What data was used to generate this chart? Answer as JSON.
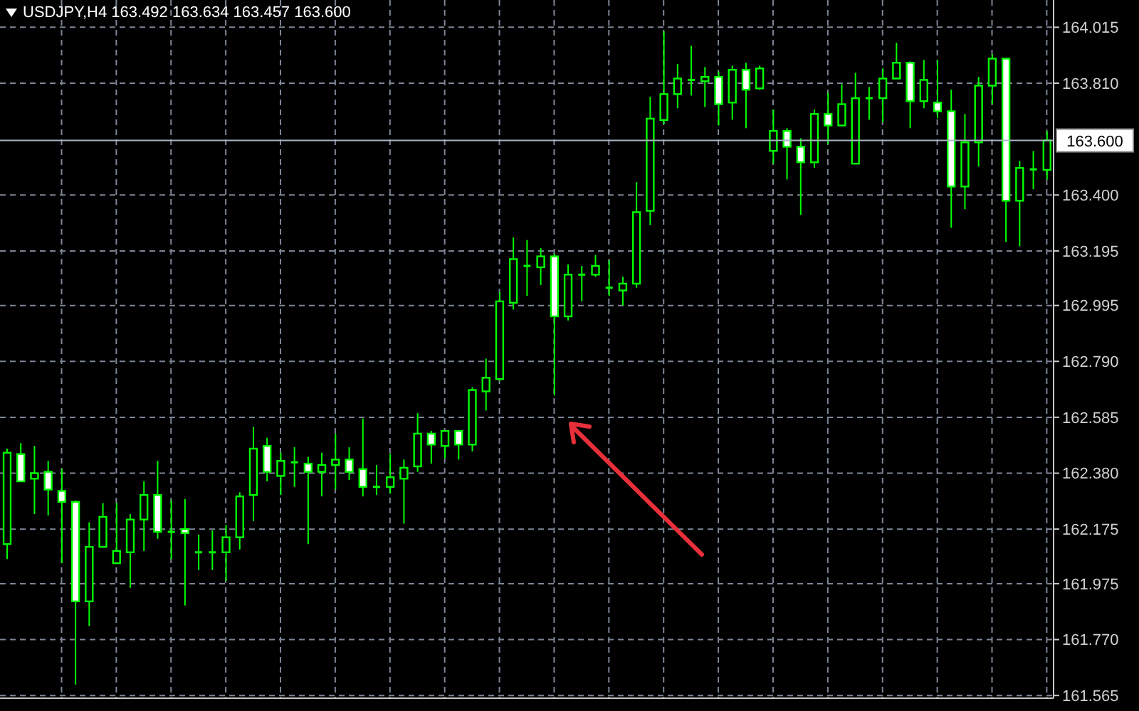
{
  "chart_data": {
    "type": "candlestick",
    "title": "USDJPY,H4 163.492 163.634 163.457 163.600",
    "categories": [
      null,
      null,
      null,
      null,
      null,
      null,
      null,
      null,
      null,
      null,
      null,
      null,
      null,
      null,
      null,
      null,
      null,
      null,
      null,
      null,
      null,
      null,
      null,
      null,
      null,
      null,
      null,
      null,
      null,
      null,
      null,
      null,
      null,
      null,
      null,
      null,
      null,
      null,
      null,
      null,
      null,
      null,
      null,
      null,
      null,
      null,
      null,
      null,
      null,
      null,
      null,
      null,
      null,
      null,
      null,
      null,
      null,
      null,
      null,
      null,
      null,
      null,
      null,
      null,
      null,
      null,
      null,
      null,
      null,
      null,
      null,
      null,
      null,
      null,
      null,
      null,
      null
    ],
    "ohlc": [
      [
        162.12,
        162.47,
        162.065,
        162.455
      ],
      [
        162.45,
        162.49,
        162.35,
        162.35
      ],
      [
        162.36,
        162.48,
        162.23,
        162.38
      ],
      [
        162.385,
        162.425,
        162.225,
        162.32
      ],
      [
        162.315,
        162.395,
        162.05,
        162.275
      ],
      [
        162.275,
        162.28,
        161.605,
        161.91
      ],
      [
        161.91,
        162.2,
        161.82,
        162.11
      ],
      [
        162.11,
        162.27,
        162.11,
        162.22
      ],
      [
        162.05,
        162.27,
        162.05,
        162.095
      ],
      [
        162.09,
        162.23,
        161.96,
        162.21
      ],
      [
        162.21,
        162.35,
        162.095,
        162.3
      ],
      [
        162.3,
        162.425,
        162.14,
        162.165
      ],
      [
        162.165,
        162.28,
        162.065,
        162.165
      ],
      [
        162.175,
        162.285,
        161.895,
        162.16
      ],
      [
        162.09,
        162.155,
        162.025,
        162.09
      ],
      [
        162.09,
        162.17,
        162.025,
        162.09
      ],
      [
        162.09,
        162.19,
        161.985,
        162.145
      ],
      [
        162.145,
        162.31,
        162.1,
        162.295
      ],
      [
        162.3,
        162.55,
        162.205,
        162.47
      ],
      [
        162.48,
        162.51,
        162.35,
        162.385
      ],
      [
        162.37,
        162.455,
        162.3,
        162.425
      ],
      [
        162.42,
        162.475,
        162.33,
        162.42
      ],
      [
        162.415,
        162.44,
        162.12,
        162.385
      ],
      [
        162.385,
        162.455,
        162.295,
        162.41
      ],
      [
        162.41,
        162.525,
        162.32,
        162.43
      ],
      [
        162.43,
        162.475,
        162.355,
        162.385
      ],
      [
        162.395,
        162.58,
        162.295,
        162.33
      ],
      [
        162.33,
        162.41,
        162.3,
        162.33
      ],
      [
        162.33,
        162.45,
        162.305,
        162.365
      ],
      [
        162.36,
        162.43,
        162.195,
        162.4
      ],
      [
        162.405,
        162.6,
        162.385,
        162.525
      ],
      [
        162.525,
        162.535,
        162.415,
        162.485
      ],
      [
        162.48,
        162.535,
        162.435,
        162.535
      ],
      [
        162.535,
        162.535,
        162.43,
        162.485
      ],
      [
        162.485,
        162.695,
        162.46,
        162.685
      ],
      [
        162.68,
        162.8,
        162.61,
        162.73
      ],
      [
        162.725,
        163.045,
        162.72,
        163.01
      ],
      [
        163.005,
        163.245,
        162.98,
        163.165
      ],
      [
        163.14,
        163.235,
        163.03,
        163.14
      ],
      [
        163.135,
        163.205,
        163.07,
        163.175
      ],
      [
        163.175,
        163.185,
        162.665,
        162.955
      ],
      [
        162.955,
        163.145,
        162.94,
        163.108
      ],
      [
        163.108,
        163.14,
        163.01,
        163.108
      ],
      [
        163.108,
        163.18,
        163.1,
        163.14
      ],
      [
        163.06,
        163.16,
        163.03,
        163.06
      ],
      [
        163.05,
        163.1,
        162.995,
        163.075
      ],
      [
        163.075,
        163.447,
        163.06,
        163.337
      ],
      [
        163.342,
        163.76,
        163.29,
        163.68
      ],
      [
        163.675,
        164.0,
        163.66,
        163.77
      ],
      [
        163.77,
        163.88,
        163.718,
        163.827
      ],
      [
        163.822,
        163.947,
        163.765,
        163.822
      ],
      [
        163.817,
        163.869,
        163.723,
        163.833
      ],
      [
        163.833,
        163.853,
        163.655,
        163.733
      ],
      [
        163.739,
        163.874,
        163.676,
        163.859
      ],
      [
        163.859,
        163.885,
        163.645,
        163.786
      ],
      [
        163.791,
        163.874,
        163.786,
        163.864
      ],
      [
        163.562,
        163.713,
        163.515,
        163.635
      ],
      [
        163.635,
        163.645,
        163.457,
        163.577
      ],
      [
        163.577,
        163.608,
        163.327,
        163.52
      ],
      [
        163.52,
        163.713,
        163.499,
        163.697
      ],
      [
        163.697,
        163.775,
        163.587,
        163.655
      ],
      [
        163.655,
        163.806,
        163.655,
        163.733
      ],
      [
        163.515,
        163.848,
        163.515,
        163.755
      ],
      [
        163.755,
        163.796,
        163.676,
        163.755
      ],
      [
        163.755,
        163.864,
        163.666,
        163.827
      ],
      [
        163.827,
        163.958,
        163.827,
        163.885
      ],
      [
        163.885,
        163.89,
        163.645,
        163.744
      ],
      [
        163.744,
        163.895,
        163.718,
        163.822
      ],
      [
        163.739,
        163.895,
        163.681,
        163.707
      ],
      [
        163.707,
        163.786,
        163.28,
        163.431
      ],
      [
        163.431,
        163.697,
        163.348,
        163.593
      ],
      [
        163.593,
        163.833,
        163.504,
        163.801
      ],
      [
        163.801,
        163.916,
        163.733,
        163.9
      ],
      [
        163.9,
        163.9,
        163.228,
        163.379
      ],
      [
        163.379,
        163.525,
        163.212,
        163.499
      ],
      [
        163.494,
        163.561,
        163.421,
        163.494
      ],
      [
        163.492,
        163.634,
        163.457,
        163.6
      ]
    ],
    "color": "#00ff00",
    "ylim": [
      161.555,
      164.115
    ],
    "yticks": [
      164.015,
      {
        "value": 163.81,
        "label": "163.810"
      },
      {
        "value": 163.4,
        "label": "163.400"
      },
      163.195,
      162.995,
      {
        "value": 162.79,
        "label": "162.790"
      },
      162.585,
      {
        "value": 162.38,
        "label": "162.380"
      },
      162.175,
      161.975,
      {
        "value": 161.77,
        "label": "161.770"
      },
      161.565
    ],
    "ref_lines": [
      {
        "axis": "y",
        "value": 163.6,
        "label": "163.600",
        "color": "#aab4c4",
        "line_style": "solid"
      }
    ],
    "grid": true,
    "tick_labels": "y"
  }
}
